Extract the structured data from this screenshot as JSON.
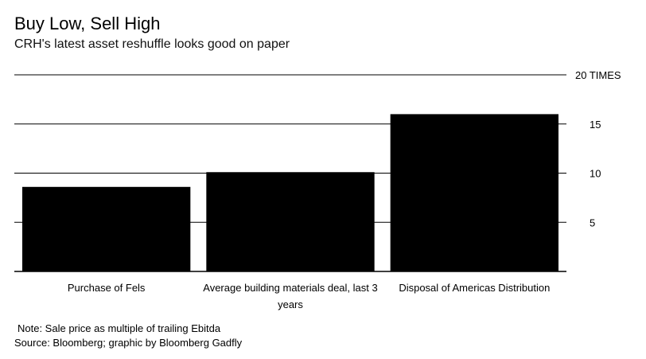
{
  "title": "Buy Low, Sell High",
  "subtitle": "CRH's latest asset reshuffle looks good on paper",
  "footer": {
    "note": "Note: Sale price as multiple of trailing Ebitda",
    "source": "Source: Bloomberg; graphic by Bloomberg Gadfly"
  },
  "colors": {
    "bar": "#000000",
    "grid": "#000000",
    "background": "#ffffff"
  },
  "chart_data": {
    "type": "bar",
    "categories": [
      "Purchase of Fels",
      "Average building materials deal, last 3 years",
      "Disposal of Americas Distribution"
    ],
    "category_lines": [
      [
        "Purchase of Fels"
      ],
      [
        "Average building materials deal, last 3",
        "years"
      ],
      [
        "Disposal of Americas Distribution"
      ]
    ],
    "values": [
      8.6,
      10.1,
      16.0
    ],
    "ylim": [
      0,
      20
    ],
    "yticks": [
      5,
      10,
      15,
      20
    ],
    "ytick_labels": [
      "5",
      "10",
      "15",
      "20 TIMES"
    ],
    "grid": true,
    "y_axis_side": "right"
  }
}
